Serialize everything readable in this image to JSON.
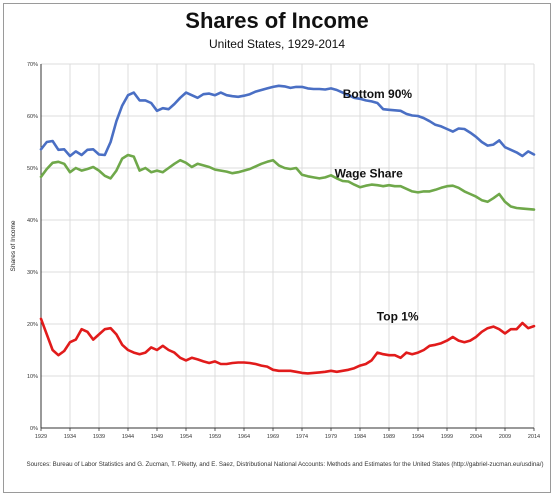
{
  "header": {
    "title": "Shares of Income",
    "subtitle": "United States, 1929-2014"
  },
  "footer": {
    "source": "Sources: Bureau of Labor Statistics and G. Zucman, T. Piketty, and E. Saez, Distributional National Accounts: Methods and Estimates for the United States (http://gabriel-zucman.eu/usdina/)"
  },
  "colors": {
    "bottom90": "#4a6fc4",
    "wage": "#6fa84a",
    "top1": "#e11b1b",
    "grid": "#dcdcdc",
    "axis": "#333333"
  },
  "chart_data": {
    "type": "line",
    "title": "Shares of Income",
    "subtitle": "United States, 1929-2014",
    "xlabel": "",
    "ylabel": "Shares of Income",
    "xlim": [
      1929,
      2014
    ],
    "ylim": [
      0,
      70
    ],
    "x_ticks": [
      "1929",
      "1934",
      "1939",
      "1944",
      "1949",
      "1954",
      "1959",
      "1964",
      "1969",
      "1974",
      "1979",
      "1984",
      "1989",
      "1994",
      "1999",
      "2004",
      "2009",
      "2014"
    ],
    "y_ticks": [
      "0%",
      "10%",
      "20%",
      "30%",
      "40%",
      "50%",
      "60%",
      "70%"
    ],
    "grid": true,
    "legend": "direct labels",
    "series": [
      {
        "name": "Bottom 90%",
        "key": "bottom90",
        "label_at": [
          1987,
          63.5
        ],
        "points": [
          [
            1929,
            53.6
          ],
          [
            1930,
            55.0
          ],
          [
            1931,
            55.2
          ],
          [
            1932,
            53.5
          ],
          [
            1933,
            53.6
          ],
          [
            1934,
            52.3
          ],
          [
            1935,
            53.2
          ],
          [
            1936,
            52.5
          ],
          [
            1937,
            53.5
          ],
          [
            1938,
            53.6
          ],
          [
            1939,
            52.6
          ],
          [
            1940,
            52.5
          ],
          [
            1941,
            55.0
          ],
          [
            1942,
            59.0
          ],
          [
            1943,
            62.0
          ],
          [
            1944,
            64.0
          ],
          [
            1945,
            64.5
          ],
          [
            1946,
            63.0
          ],
          [
            1947,
            63.0
          ],
          [
            1948,
            62.5
          ],
          [
            1949,
            61.0
          ],
          [
            1950,
            61.5
          ],
          [
            1951,
            61.3
          ],
          [
            1952,
            62.3
          ],
          [
            1953,
            63.5
          ],
          [
            1954,
            64.5
          ],
          [
            1955,
            64.0
          ],
          [
            1956,
            63.5
          ],
          [
            1957,
            64.2
          ],
          [
            1958,
            64.3
          ],
          [
            1959,
            64.0
          ],
          [
            1960,
            64.5
          ],
          [
            1961,
            64.0
          ],
          [
            1962,
            63.8
          ],
          [
            1963,
            63.7
          ],
          [
            1964,
            63.9
          ],
          [
            1965,
            64.2
          ],
          [
            1966,
            64.7
          ],
          [
            1967,
            65.0
          ],
          [
            1968,
            65.3
          ],
          [
            1969,
            65.6
          ],
          [
            1970,
            65.8
          ],
          [
            1971,
            65.7
          ],
          [
            1972,
            65.4
          ],
          [
            1973,
            65.6
          ],
          [
            1974,
            65.6
          ],
          [
            1975,
            65.3
          ],
          [
            1976,
            65.2
          ],
          [
            1977,
            65.2
          ],
          [
            1978,
            65.1
          ],
          [
            1979,
            65.3
          ],
          [
            1980,
            65.0
          ],
          [
            1981,
            64.5
          ],
          [
            1982,
            64.0
          ],
          [
            1983,
            63.5
          ],
          [
            1984,
            63.3
          ],
          [
            1985,
            63.0
          ],
          [
            1986,
            62.8
          ],
          [
            1987,
            62.5
          ],
          [
            1988,
            61.3
          ],
          [
            1989,
            61.2
          ],
          [
            1990,
            61.1
          ],
          [
            1991,
            61.0
          ],
          [
            1992,
            60.4
          ],
          [
            1993,
            60.1
          ],
          [
            1994,
            60.0
          ],
          [
            1995,
            59.6
          ],
          [
            1996,
            59.0
          ],
          [
            1997,
            58.3
          ],
          [
            1998,
            58.0
          ],
          [
            1999,
            57.5
          ],
          [
            2000,
            57.0
          ],
          [
            2001,
            57.6
          ],
          [
            2002,
            57.5
          ],
          [
            2003,
            56.8
          ],
          [
            2004,
            56.0
          ],
          [
            2005,
            55.0
          ],
          [
            2006,
            54.3
          ],
          [
            2007,
            54.5
          ],
          [
            2008,
            55.3
          ],
          [
            2009,
            54.0
          ],
          [
            2010,
            53.5
          ],
          [
            2011,
            53.0
          ],
          [
            2012,
            52.3
          ],
          [
            2013,
            53.2
          ],
          [
            2014,
            52.6
          ]
        ]
      },
      {
        "name": "Wage Share",
        "key": "wage",
        "label_at": [
          1985.5,
          48.2
        ],
        "points": [
          [
            1929,
            48.3
          ],
          [
            1930,
            49.8
          ],
          [
            1931,
            51.0
          ],
          [
            1932,
            51.2
          ],
          [
            1933,
            50.8
          ],
          [
            1934,
            49.2
          ],
          [
            1935,
            50.0
          ],
          [
            1936,
            49.5
          ],
          [
            1937,
            49.8
          ],
          [
            1938,
            50.2
          ],
          [
            1939,
            49.5
          ],
          [
            1940,
            48.5
          ],
          [
            1941,
            48.0
          ],
          [
            1942,
            49.5
          ],
          [
            1943,
            51.8
          ],
          [
            1944,
            52.5
          ],
          [
            1945,
            52.2
          ],
          [
            1946,
            49.5
          ],
          [
            1947,
            50.0
          ],
          [
            1948,
            49.2
          ],
          [
            1949,
            49.5
          ],
          [
            1950,
            49.2
          ],
          [
            1951,
            50.0
          ],
          [
            1952,
            50.8
          ],
          [
            1953,
            51.5
          ],
          [
            1954,
            51.0
          ],
          [
            1955,
            50.2
          ],
          [
            1956,
            50.8
          ],
          [
            1957,
            50.5
          ],
          [
            1958,
            50.2
          ],
          [
            1959,
            49.7
          ],
          [
            1960,
            49.5
          ],
          [
            1961,
            49.3
          ],
          [
            1962,
            49.0
          ],
          [
            1963,
            49.2
          ],
          [
            1964,
            49.5
          ],
          [
            1965,
            49.8
          ],
          [
            1966,
            50.3
          ],
          [
            1967,
            50.8
          ],
          [
            1968,
            51.2
          ],
          [
            1969,
            51.5
          ],
          [
            1970,
            50.5
          ],
          [
            1971,
            50.0
          ],
          [
            1972,
            49.8
          ],
          [
            1973,
            50.0
          ],
          [
            1974,
            48.7
          ],
          [
            1975,
            48.4
          ],
          [
            1976,
            48.2
          ],
          [
            1977,
            48.0
          ],
          [
            1978,
            48.2
          ],
          [
            1979,
            48.6
          ],
          [
            1980,
            48.0
          ],
          [
            1981,
            47.5
          ],
          [
            1982,
            47.4
          ],
          [
            1983,
            46.8
          ],
          [
            1984,
            46.3
          ],
          [
            1985,
            46.6
          ],
          [
            1986,
            46.8
          ],
          [
            1987,
            46.7
          ],
          [
            1988,
            46.5
          ],
          [
            1989,
            46.7
          ],
          [
            1990,
            46.5
          ],
          [
            1991,
            46.5
          ],
          [
            1992,
            46.0
          ],
          [
            1993,
            45.5
          ],
          [
            1994,
            45.3
          ],
          [
            1995,
            45.5
          ],
          [
            1996,
            45.5
          ],
          [
            1997,
            45.8
          ],
          [
            1998,
            46.2
          ],
          [
            1999,
            46.5
          ],
          [
            2000,
            46.6
          ],
          [
            2001,
            46.2
          ],
          [
            2002,
            45.5
          ],
          [
            2003,
            45.0
          ],
          [
            2004,
            44.5
          ],
          [
            2005,
            43.8
          ],
          [
            2006,
            43.5
          ],
          [
            2007,
            44.2
          ],
          [
            2008,
            45.0
          ],
          [
            2009,
            43.5
          ],
          [
            2010,
            42.6
          ],
          [
            2011,
            42.3
          ],
          [
            2012,
            42.2
          ],
          [
            2013,
            42.1
          ],
          [
            2014,
            42.0
          ]
        ]
      },
      {
        "name": "Top 1%",
        "key": "top1",
        "label_at": [
          1990.5,
          20.7
        ],
        "points": [
          [
            1929,
            21.0
          ],
          [
            1930,
            18.0
          ],
          [
            1931,
            15.0
          ],
          [
            1932,
            14.0
          ],
          [
            1933,
            14.8
          ],
          [
            1934,
            16.5
          ],
          [
            1935,
            17.0
          ],
          [
            1936,
            19.0
          ],
          [
            1937,
            18.5
          ],
          [
            1938,
            17.0
          ],
          [
            1939,
            18.0
          ],
          [
            1940,
            19.0
          ],
          [
            1941,
            19.2
          ],
          [
            1942,
            18.0
          ],
          [
            1943,
            16.0
          ],
          [
            1944,
            15.0
          ],
          [
            1945,
            14.5
          ],
          [
            1946,
            14.2
          ],
          [
            1947,
            14.5
          ],
          [
            1948,
            15.5
          ],
          [
            1949,
            15.0
          ],
          [
            1950,
            15.8
          ],
          [
            1951,
            15.0
          ],
          [
            1952,
            14.5
          ],
          [
            1953,
            13.5
          ],
          [
            1954,
            13.0
          ],
          [
            1955,
            13.5
          ],
          [
            1956,
            13.2
          ],
          [
            1957,
            12.8
          ],
          [
            1958,
            12.5
          ],
          [
            1959,
            12.8
          ],
          [
            1960,
            12.3
          ],
          [
            1961,
            12.3
          ],
          [
            1962,
            12.5
          ],
          [
            1963,
            12.6
          ],
          [
            1964,
            12.6
          ],
          [
            1965,
            12.5
          ],
          [
            1966,
            12.3
          ],
          [
            1967,
            12.0
          ],
          [
            1968,
            11.8
          ],
          [
            1969,
            11.2
          ],
          [
            1970,
            11.0
          ],
          [
            1971,
            11.0
          ],
          [
            1972,
            11.0
          ],
          [
            1973,
            10.8
          ],
          [
            1974,
            10.6
          ],
          [
            1975,
            10.5
          ],
          [
            1976,
            10.6
          ],
          [
            1977,
            10.7
          ],
          [
            1978,
            10.8
          ],
          [
            1979,
            11.0
          ],
          [
            1980,
            10.8
          ],
          [
            1981,
            11.0
          ],
          [
            1982,
            11.2
          ],
          [
            1983,
            11.5
          ],
          [
            1984,
            12.0
          ],
          [
            1985,
            12.3
          ],
          [
            1986,
            13.0
          ],
          [
            1987,
            14.5
          ],
          [
            1988,
            14.2
          ],
          [
            1989,
            14.0
          ],
          [
            1990,
            14.0
          ],
          [
            1991,
            13.5
          ],
          [
            1992,
            14.5
          ],
          [
            1993,
            14.2
          ],
          [
            1994,
            14.5
          ],
          [
            1995,
            15.0
          ],
          [
            1996,
            15.8
          ],
          [
            1997,
            16.0
          ],
          [
            1998,
            16.3
          ],
          [
            1999,
            16.8
          ],
          [
            2000,
            17.5
          ],
          [
            2001,
            16.8
          ],
          [
            2002,
            16.5
          ],
          [
            2003,
            16.8
          ],
          [
            2004,
            17.5
          ],
          [
            2005,
            18.5
          ],
          [
            2006,
            19.2
          ],
          [
            2007,
            19.5
          ],
          [
            2008,
            19.0
          ],
          [
            2009,
            18.2
          ],
          [
            2010,
            19.0
          ],
          [
            2011,
            19.0
          ],
          [
            2012,
            20.2
          ],
          [
            2013,
            19.2
          ],
          [
            2014,
            19.6
          ]
        ]
      }
    ]
  }
}
